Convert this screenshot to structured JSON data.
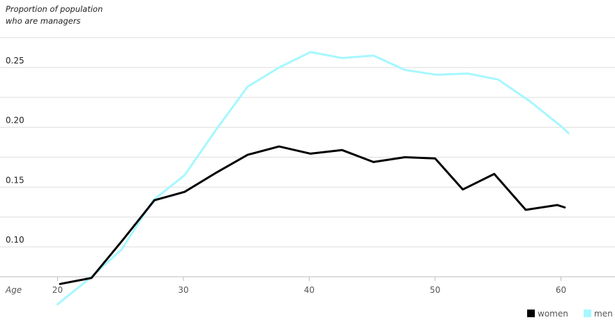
{
  "chart_data": {
    "type": "line",
    "title": "",
    "ylabel_line1": "Proportion of population",
    "ylabel_line2": "who are managers",
    "xlabel": "Age",
    "xlim": [
      15,
      63
    ],
    "ylim": [
      0.05,
      0.28
    ],
    "x_ticks": [
      20,
      30,
      40,
      50,
      60
    ],
    "y_ticks": [
      0.1,
      0.15,
      0.2,
      0.25
    ],
    "y_tick_labels": [
      "0.10",
      "0.15",
      "0.20",
      "0.25"
    ],
    "grid_y": [
      0.075,
      0.1,
      0.125,
      0.15,
      0.175,
      0.2,
      0.225,
      0.25,
      0.275
    ],
    "series": [
      {
        "name": "women",
        "color": "#000000",
        "x": [
          20.2,
          22.7,
          25.2,
          27.7,
          30.1,
          32.6,
          35.1,
          37.6,
          40.1,
          42.6,
          45.1,
          47.6,
          50.0,
          52.2,
          54.7,
          57.2,
          59.7,
          60.3
        ],
        "y": [
          0.069,
          0.074,
          0.106,
          0.139,
          0.146,
          0.162,
          0.177,
          0.184,
          0.178,
          0.181,
          0.171,
          0.175,
          0.174,
          0.148,
          0.161,
          0.131,
          0.135,
          0.133
        ]
      },
      {
        "name": "men",
        "color": "#a6f7ff",
        "x": [
          20.0,
          22.6,
          25.1,
          27.6,
          30.1,
          32.6,
          35.1,
          37.6,
          40.1,
          42.6,
          45.1,
          47.6,
          50.1,
          52.6,
          55.0,
          57.5,
          60.0,
          60.6
        ],
        "y": [
          0.052,
          0.074,
          0.098,
          0.139,
          0.16,
          0.198,
          0.234,
          0.25,
          0.263,
          0.258,
          0.26,
          0.248,
          0.244,
          0.245,
          0.24,
          0.222,
          0.201,
          0.195
        ]
      }
    ],
    "legend": {
      "position": "bottom-right",
      "items": [
        {
          "label": "women",
          "color": "#000000"
        },
        {
          "label": "men",
          "color": "#a6f7ff"
        }
      ]
    }
  }
}
